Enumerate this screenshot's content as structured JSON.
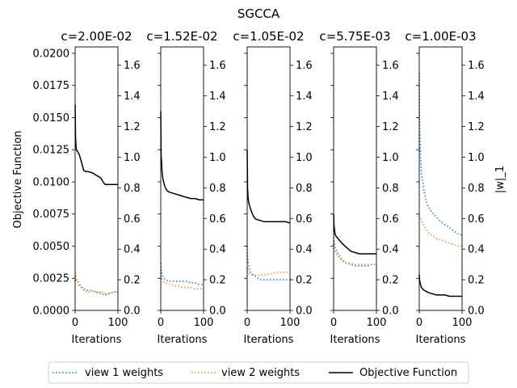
{
  "chart_data": {
    "type": "line",
    "suptitle": "SGCCA",
    "ylabel_left": "Objective Function",
    "ylabel_right": "|w|_1",
    "xlabel": "Iterations",
    "xlim": [
      0,
      100
    ],
    "ylim_left": [
      0,
      0.0205
    ],
    "ylim_right": [
      0,
      1.72
    ],
    "xticks": [
      "0",
      "100"
    ],
    "yticks_left": [
      "0.0000",
      "0.0025",
      "0.0050",
      "0.0075",
      "0.0100",
      "0.0125",
      "0.0150",
      "0.0175",
      "0.0200"
    ],
    "yticks_left_values": [
      0,
      0.0025,
      0.005,
      0.0075,
      0.01,
      0.0125,
      0.015,
      0.0175,
      0.02
    ],
    "yticks_right": [
      "0.0",
      "0.2",
      "0.4",
      "0.6",
      "0.8",
      "1.0",
      "1.2",
      "1.4",
      "1.6"
    ],
    "yticks_right_values": [
      0,
      0.2,
      0.4,
      0.6,
      0.8,
      1.0,
      1.2,
      1.4,
      1.6
    ],
    "grid": false,
    "legend_position": "bottom-center",
    "legend": [
      "view 1 weights",
      "view 2 weights",
      "Objective Function"
    ],
    "colors": {
      "view 1 weights": "#1f77b4",
      "view 2 weights": "#ff7f0e",
      "Objective Function": "#000000"
    },
    "panels": [
      {
        "title": "c=2.00E-02",
        "series": [
          {
            "name": "view 1 weights",
            "axis": "right",
            "x": [
              0,
              1,
              3,
              5,
              10,
              20,
              30,
              40,
              50,
              60,
              70,
              80,
              90,
              100
            ],
            "y": [
              0.22,
              0.2,
              0.19,
              0.19,
              0.17,
              0.14,
              0.13,
              0.13,
              0.12,
              0.11,
              0.1,
              0.11,
              0.12,
              0.12
            ]
          },
          {
            "name": "view 2 weights",
            "axis": "right",
            "x": [
              0,
              1,
              3,
              5,
              10,
              20,
              30,
              40,
              50,
              60,
              70,
              80,
              90,
              100
            ],
            "y": [
              0.27,
              0.24,
              0.21,
              0.19,
              0.16,
              0.13,
              0.12,
              0.12,
              0.12,
              0.12,
              0.11,
              0.11,
              0.12,
              0.12
            ]
          },
          {
            "name": "Objective Function",
            "axis": "left",
            "x": [
              0,
              1,
              2,
              3,
              5,
              10,
              15,
              20,
              25,
              30,
              40,
              50,
              55,
              60,
              65,
              70,
              75,
              80,
              90,
              100
            ],
            "y": [
              0.016,
              0.0135,
              0.0128,
              0.0125,
              0.0124,
              0.0121,
              0.0115,
              0.0109,
              0.0108,
              0.0108,
              0.0107,
              0.0105,
              0.0104,
              0.0103,
              0.01,
              0.0098,
              0.0098,
              0.0098,
              0.0098,
              0.0098
            ]
          }
        ]
      },
      {
        "title": "c=1.52E-02",
        "series": [
          {
            "name": "view 1 weights",
            "axis": "right",
            "x": [
              0,
              1,
              3,
              5,
              10,
              20,
              30,
              40,
              50,
              60,
              70,
              80,
              90,
              100
            ],
            "y": [
              0.31,
              0.27,
              0.24,
              0.22,
              0.2,
              0.19,
              0.19,
              0.19,
              0.19,
              0.19,
              0.18,
              0.18,
              0.17,
              0.17
            ]
          },
          {
            "name": "view 2 weights",
            "axis": "right",
            "x": [
              0,
              1,
              3,
              5,
              10,
              20,
              30,
              40,
              50,
              60,
              70,
              80,
              90,
              100
            ],
            "y": [
              0.25,
              0.22,
              0.2,
              0.19,
              0.18,
              0.17,
              0.16,
              0.16,
              0.15,
              0.15,
              0.15,
              0.14,
              0.14,
              0.14
            ]
          },
          {
            "name": "Objective Function",
            "axis": "left",
            "x": [
              0,
              1,
              2,
              3,
              5,
              10,
              15,
              20,
              30,
              40,
              50,
              60,
              70,
              80,
              90,
              100
            ],
            "y": [
              0.0155,
              0.012,
              0.0115,
              0.0108,
              0.0102,
              0.0096,
              0.0093,
              0.0092,
              0.0091,
              0.009,
              0.0089,
              0.0088,
              0.0087,
              0.0087,
              0.0086,
              0.0086
            ]
          }
        ]
      },
      {
        "title": "c=1.05E-02",
        "series": [
          {
            "name": "view 1 weights",
            "axis": "right",
            "x": [
              0,
              1,
              3,
              5,
              10,
              20,
              30,
              40,
              50,
              60,
              70,
              80,
              90,
              100
            ],
            "y": [
              0.42,
              0.35,
              0.3,
              0.27,
              0.24,
              0.22,
              0.2,
              0.2,
              0.2,
              0.2,
              0.2,
              0.2,
              0.2,
              0.2
            ]
          },
          {
            "name": "view 2 weights",
            "axis": "right",
            "x": [
              0,
              1,
              3,
              5,
              10,
              20,
              30,
              40,
              50,
              60,
              70,
              80,
              90,
              100
            ],
            "y": [
              0.28,
              0.26,
              0.24,
              0.24,
              0.23,
              0.23,
              0.23,
              0.23,
              0.24,
              0.24,
              0.25,
              0.25,
              0.25,
              0.25
            ]
          },
          {
            "name": "Objective Function",
            "axis": "left",
            "x": [
              0,
              1,
              2,
              3,
              5,
              10,
              15,
              20,
              30,
              40,
              50,
              60,
              70,
              80,
              90,
              100
            ],
            "y": [
              0.0125,
              0.0095,
              0.0088,
              0.0085,
              0.0082,
              0.0077,
              0.0073,
              0.0071,
              0.007,
              0.0069,
              0.0069,
              0.0069,
              0.0069,
              0.0069,
              0.0069,
              0.0068
            ]
          }
        ]
      },
      {
        "title": "c=5.75E-03",
        "series": [
          {
            "name": "view 1 weights",
            "axis": "right",
            "x": [
              0,
              1,
              3,
              5,
              10,
              20,
              30,
              40,
              50,
              60,
              70,
              80,
              90,
              100
            ],
            "y": [
              0.52,
              0.45,
              0.42,
              0.4,
              0.37,
              0.33,
              0.31,
              0.3,
              0.29,
              0.29,
              0.29,
              0.29,
              0.3,
              0.3
            ]
          },
          {
            "name": "view 2 weights",
            "axis": "right",
            "x": [
              0,
              1,
              3,
              5,
              10,
              20,
              30,
              40,
              50,
              60,
              70,
              80,
              90,
              100
            ],
            "y": [
              0.45,
              0.41,
              0.39,
              0.37,
              0.35,
              0.32,
              0.31,
              0.31,
              0.3,
              0.3,
              0.3,
              0.3,
              0.3,
              0.3
            ]
          },
          {
            "name": "Objective Function",
            "axis": "left",
            "x": [
              0,
              1,
              2,
              3,
              5,
              10,
              20,
              30,
              40,
              50,
              60,
              70,
              80,
              90,
              100
            ],
            "y": [
              0.0075,
              0.0066,
              0.0063,
              0.006,
              0.0058,
              0.0056,
              0.0052,
              0.0049,
              0.0046,
              0.0045,
              0.0044,
              0.0044,
              0.0044,
              0.0044,
              0.0044
            ]
          }
        ]
      },
      {
        "title": "c=1.00E-03",
        "series": [
          {
            "name": "view 1 weights",
            "axis": "right",
            "x": [
              0,
              1,
              3,
              5,
              10,
              15,
              20,
              30,
              40,
              50,
              60,
              70,
              80,
              90,
              100
            ],
            "y": [
              1.55,
              1.2,
              1.0,
              0.9,
              0.8,
              0.72,
              0.68,
              0.64,
              0.61,
              0.58,
              0.56,
              0.54,
              0.52,
              0.5,
              0.49
            ]
          },
          {
            "name": "view 2 weights",
            "axis": "right",
            "x": [
              0,
              1,
              3,
              5,
              10,
              15,
              20,
              30,
              40,
              50,
              60,
              70,
              80,
              90,
              100
            ],
            "y": [
              0.62,
              0.61,
              0.6,
              0.59,
              0.56,
              0.53,
              0.51,
              0.49,
              0.47,
              0.46,
              0.45,
              0.44,
              0.43,
              0.42,
              0.42
            ]
          },
          {
            "name": "Objective Function",
            "axis": "left",
            "x": [
              0,
              1,
              3,
              5,
              10,
              20,
              30,
              40,
              50,
              60,
              70,
              80,
              90,
              100
            ],
            "y": [
              0.0028,
              0.0023,
              0.002,
              0.0018,
              0.0016,
              0.0014,
              0.0013,
              0.0012,
              0.0012,
              0.0012,
              0.0011,
              0.0011,
              0.0011,
              0.0011
            ]
          }
        ]
      }
    ]
  }
}
